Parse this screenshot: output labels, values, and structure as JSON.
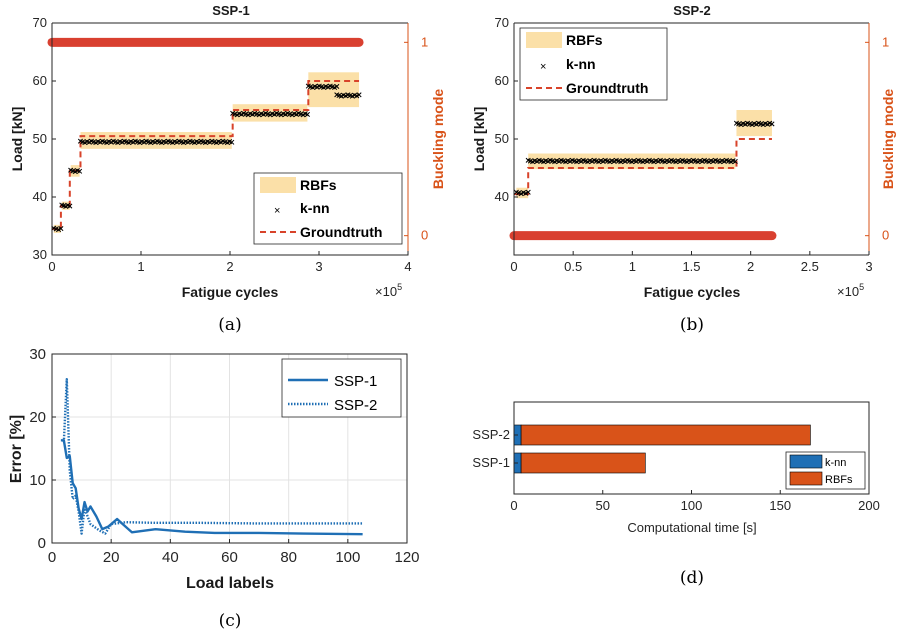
{
  "colors": {
    "groundtruth": "#d8432a",
    "rbf_fill": "#fbe0a8",
    "knn": "#000000",
    "buckling": "#d94030",
    "buckling_axis": "#d95319",
    "ssp1_line": "#1f6fb5",
    "bar_knn": "#1f6fb5",
    "bar_rbf": "#d95319"
  },
  "chart_data": [
    {
      "id": "a",
      "type": "line",
      "title": "SSP-1",
      "caption": "(a)",
      "xlabel": "Fatigue cycles",
      "x_exponent": "×10",
      "x_exponent_power": "5",
      "ylabel": "Load [kN]",
      "y2label": "Buckling mode",
      "xlim": [
        0,
        4
      ],
      "ylim": [
        30,
        70
      ],
      "y2lim": [
        -0.1,
        1.1
      ],
      "xticks": [
        "0",
        "1",
        "2",
        "3",
        "4"
      ],
      "yticks": [
        "30",
        "40",
        "50",
        "60",
        "70"
      ],
      "y2ticks": [
        "0",
        "1"
      ],
      "legend": {
        "position": "bottom-right",
        "entries": [
          "RBFs",
          "k-nn",
          "Groundtruth"
        ]
      },
      "groundtruth": [
        {
          "x": [
            0.0,
            0.1
          ],
          "y": 34.5
        },
        {
          "x": [
            0.1,
            0.2
          ],
          "y": 38.5
        },
        {
          "x": [
            0.2,
            0.32
          ],
          "y": 44.5
        },
        {
          "x": [
            0.32,
            2.03
          ],
          "y": 50.5
        },
        {
          "x": [
            2.03,
            2.88
          ],
          "y": 55.0
        },
        {
          "x": [
            2.88,
            3.45
          ],
          "y": 60.0
        }
      ],
      "knn": [
        {
          "x": [
            0.02,
            0.1
          ],
          "y": 34.5
        },
        {
          "x": [
            0.11,
            0.2
          ],
          "y": 38.5
        },
        {
          "x": [
            0.21,
            0.31
          ],
          "y": 44.5
        },
        {
          "x": [
            0.32,
            2.02
          ],
          "y": 49.5
        },
        {
          "x": [
            2.03,
            2.87
          ],
          "y": 54.3
        },
        {
          "x": [
            2.88,
            3.2
          ],
          "y": 59.0
        },
        {
          "x": [
            3.2,
            3.45
          ],
          "y": 57.5
        }
      ],
      "rbf_band": [
        {
          "x": [
            0.02,
            0.1
          ],
          "lo": 33.8,
          "hi": 35.2
        },
        {
          "x": [
            0.11,
            0.2
          ],
          "lo": 37.8,
          "hi": 39.2
        },
        {
          "x": [
            0.21,
            0.31
          ],
          "lo": 43.5,
          "hi": 45.5
        },
        {
          "x": [
            0.32,
            2.02
          ],
          "lo": 48.3,
          "hi": 51.2
        },
        {
          "x": [
            2.03,
            2.87
          ],
          "lo": 53.0,
          "hi": 56.0
        },
        {
          "x": [
            2.88,
            3.45
          ],
          "lo": 55.5,
          "hi": 61.5
        }
      ],
      "buckling": {
        "value": 1,
        "x": [
          0,
          3.45
        ]
      }
    },
    {
      "id": "b",
      "type": "line",
      "title": "SSP-2",
      "caption": "(b)",
      "xlabel": "Fatigue cycles",
      "x_exponent": "×10",
      "x_exponent_power": "5",
      "ylabel": "Load [kN]",
      "y2label": "Buckling mode",
      "xlim": [
        0,
        3
      ],
      "ylim": [
        30,
        70
      ],
      "y2lim": [
        -0.1,
        1.1
      ],
      "xticks": [
        "0",
        "0.5",
        "1",
        "1.5",
        "2",
        "2.5",
        "3"
      ],
      "yticks": [
        "40",
        "50",
        "60",
        "70"
      ],
      "y2ticks": [
        "0",
        "1"
      ],
      "legend": {
        "position": "top-left",
        "entries": [
          "RBFs",
          "k-nn",
          "Groundtruth"
        ]
      },
      "groundtruth": [
        {
          "x": [
            0.0,
            0.12
          ],
          "y": 40.5
        },
        {
          "x": [
            0.12,
            1.88
          ],
          "y": 45.0
        },
        {
          "x": [
            1.88,
            2.18
          ],
          "y": 50.0
        }
      ],
      "knn": [
        {
          "x": [
            0.02,
            0.12
          ],
          "y": 40.7
        },
        {
          "x": [
            0.12,
            1.87
          ],
          "y": 46.2
        },
        {
          "x": [
            1.88,
            2.18
          ],
          "y": 52.6
        }
      ],
      "rbf_band": [
        {
          "x": [
            0.02,
            0.12
          ],
          "lo": 39.8,
          "hi": 41.6
        },
        {
          "x": [
            0.12,
            1.87
          ],
          "lo": 44.8,
          "hi": 47.5
        },
        {
          "x": [
            1.88,
            2.18
          ],
          "lo": 50.5,
          "hi": 55.0
        }
      ],
      "buckling": {
        "value": 0,
        "x": [
          0,
          2.18
        ]
      }
    },
    {
      "id": "c",
      "type": "line",
      "caption": "(c)",
      "xlabel": "Load labels",
      "ylabel": "Error [%]",
      "xlim": [
        0,
        120
      ],
      "ylim": [
        0,
        30
      ],
      "xticks": [
        "0",
        "20",
        "40",
        "60",
        "80",
        "100",
        "120"
      ],
      "yticks": [
        "0",
        "10",
        "20",
        "30"
      ],
      "grid": true,
      "legend": {
        "position": "top-right"
      },
      "series": [
        {
          "name": "SSP-1",
          "style": "solid",
          "x": [
            3,
            4,
            5,
            6,
            7,
            8,
            9,
            10,
            11,
            12,
            13,
            15,
            17,
            19,
            22,
            27,
            35,
            45,
            55,
            70,
            85,
            105
          ],
          "y": [
            16.3,
            16.3,
            13.5,
            13.8,
            9.5,
            8.7,
            5.5,
            3.8,
            6.5,
            5.0,
            5.8,
            4.2,
            2.2,
            2.6,
            3.8,
            1.7,
            2.2,
            1.8,
            1.6,
            1.6,
            1.5,
            1.4
          ]
        },
        {
          "name": "SSP-2",
          "style": "dotted",
          "x": [
            4,
            5,
            6,
            7,
            8,
            9,
            10,
            11,
            13,
            16,
            18,
            20,
            25,
            35,
            50,
            70,
            90,
            105
          ],
          "y": [
            16.0,
            26.0,
            11.5,
            7.0,
            7.5,
            5.0,
            1.5,
            5.5,
            3.0,
            2.0,
            1.5,
            3.0,
            3.3,
            3.2,
            3.2,
            3.1,
            3.1,
            3.1
          ]
        }
      ]
    },
    {
      "id": "d",
      "type": "bar",
      "orientation": "horizontal",
      "stacked": true,
      "caption": "(d)",
      "xlabel": "Computational time [s]",
      "xlim": [
        0,
        200
      ],
      "xticks": [
        "0",
        "50",
        "100",
        "150",
        "200"
      ],
      "categories": [
        "SSP-2",
        "SSP-1"
      ],
      "legend": {
        "position": "bottom-right"
      },
      "series": [
        {
          "name": "k-nn",
          "values": [
            4,
            4
          ]
        },
        {
          "name": "RBFs",
          "values": [
            163,
            70
          ]
        }
      ]
    }
  ]
}
